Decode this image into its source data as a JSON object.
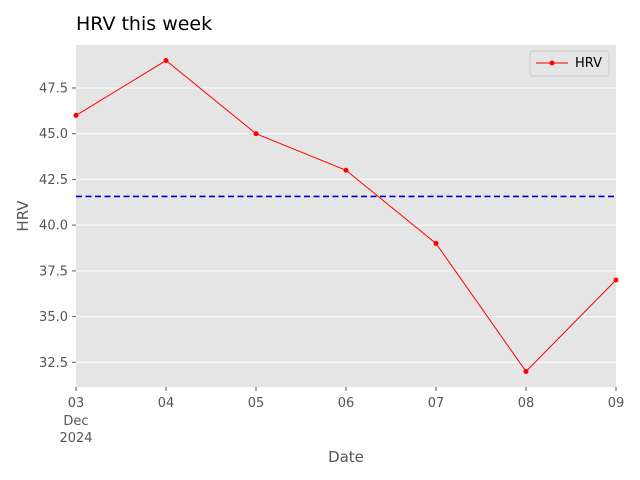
{
  "chart_data": {
    "type": "line",
    "title": "HRV this week",
    "xlabel": "Date",
    "ylabel": "HRV",
    "x": [
      "2024-12-03",
      "2024-12-04",
      "2024-12-05",
      "2024-12-06",
      "2024-12-07",
      "2024-12-08",
      "2024-12-09"
    ],
    "x_tick_labels": [
      "03",
      "04",
      "05",
      "06",
      "07",
      "08",
      "09"
    ],
    "x_tick_sublabels": {
      "month": "Dec",
      "year": "2024"
    },
    "series": [
      {
        "name": "HRV",
        "values": [
          46,
          49,
          45,
          43,
          39,
          32,
          37
        ],
        "color": "#ff0000",
        "marker": "circle"
      }
    ],
    "reference_line": {
      "value": 41.57,
      "color": "#0000cc",
      "style": "dashed"
    },
    "y_ticks": [
      "32.5",
      "35.0",
      "37.5",
      "40.0",
      "42.5",
      "45.0",
      "47.5"
    ],
    "ylim": [
      31.15,
      49.85
    ],
    "grid": true,
    "background": "#e5e5e5",
    "legend": {
      "placement": "top-right",
      "entries": [
        "HRV"
      ]
    }
  }
}
